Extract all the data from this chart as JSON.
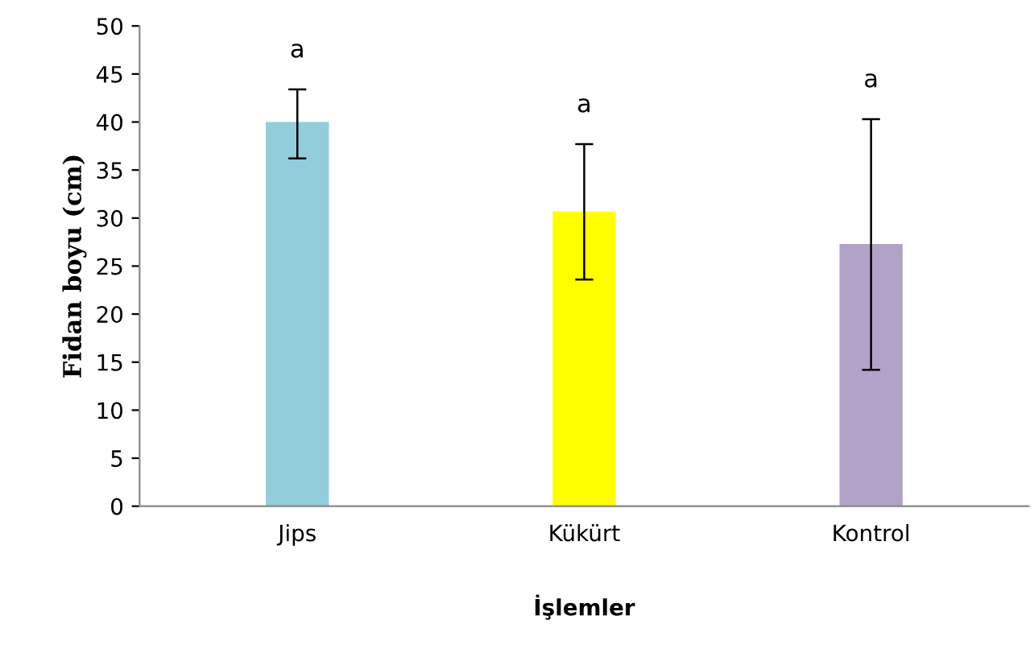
{
  "chart_data": {
    "type": "bar",
    "xlabel": "İşlemler",
    "ylabel": "Fidan boyu (cm)",
    "categories": [
      "Jips",
      "Kükürt",
      "Kontrol"
    ],
    "values": [
      40.0,
      30.7,
      27.3
    ],
    "colors": [
      "#92cddc",
      "#ffff00",
      "#b3a2c7"
    ],
    "errors": [
      [
        36.2,
        43.4
      ],
      [
        23.6,
        37.7
      ],
      [
        14.2,
        40.3
      ]
    ],
    "annotations": [
      "a",
      "a",
      "a"
    ],
    "ylim": [
      0,
      50
    ],
    "yticks": [
      0,
      5,
      10,
      15,
      20,
      25,
      30,
      35,
      40,
      45,
      50
    ],
    "grid": false,
    "legend": false
  }
}
